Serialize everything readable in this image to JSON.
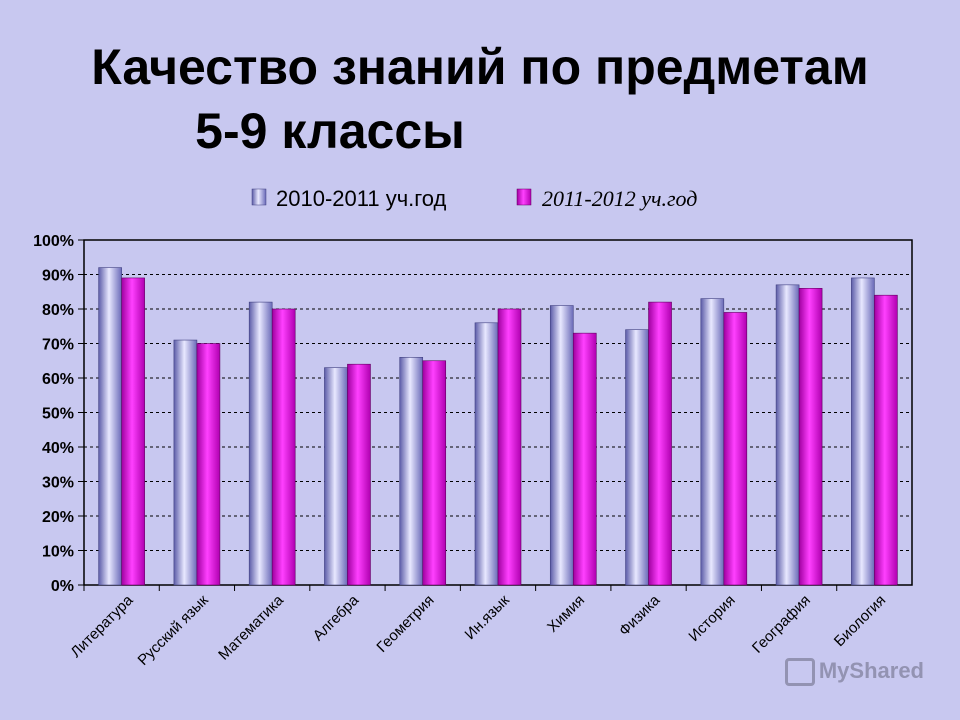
{
  "title": {
    "line1": "Качество знаний по предметам",
    "line2": "5-9 классы"
  },
  "watermark": "MyShared",
  "colors": {
    "series1": "#9a9ad8",
    "series2": "#e010d8",
    "background": "#c8c8f0"
  },
  "chart_data": {
    "type": "bar",
    "categories": [
      "Литература",
      "Русский язык",
      "Математика",
      "Алгебра",
      "Геометрия",
      "Ин.язык",
      "Химия",
      "Физика",
      "История",
      "География",
      "Биология"
    ],
    "series": [
      {
        "name": "2010-2011 уч.год",
        "values": [
          92,
          71,
          82,
          63,
          66,
          76,
          81,
          74,
          83,
          87,
          89
        ]
      },
      {
        "name": "2011-2012 уч.год",
        "values": [
          89,
          70,
          80,
          64,
          65,
          80,
          73,
          82,
          79,
          86,
          84
        ]
      }
    ],
    "ylim": [
      0,
      100
    ],
    "yticks": [
      "0%",
      "10%",
      "20%",
      "30%",
      "40%",
      "50%",
      "60%",
      "70%",
      "80%",
      "90%",
      "100%"
    ],
    "grid": true,
    "legend": "top"
  }
}
